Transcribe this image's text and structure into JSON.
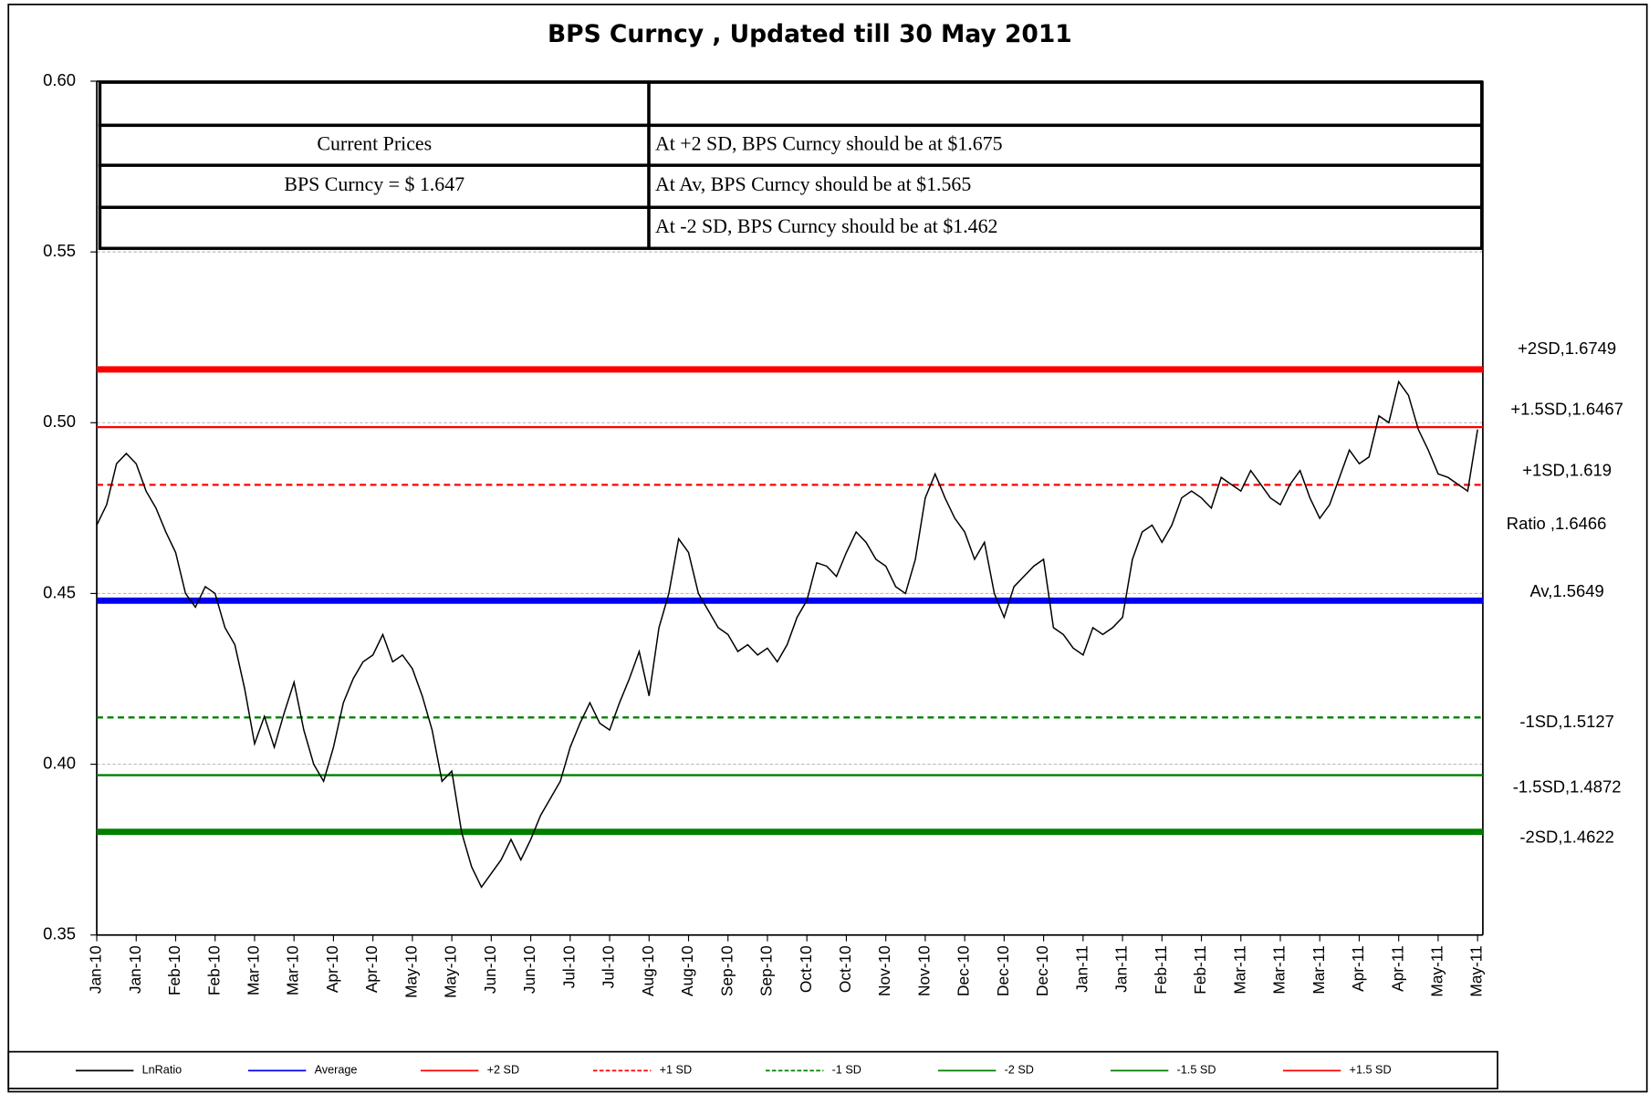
{
  "chart_data": {
    "type": "line",
    "title": "BPS Curncy , Updated till 30 May 2011",
    "categories": [
      "Jan-10",
      null,
      null,
      null,
      "Jan-10",
      null,
      null,
      null,
      "Feb-10",
      null,
      null,
      null,
      "Feb-10",
      null,
      null,
      null,
      "Mar-10",
      null,
      null,
      null,
      "Mar-10",
      null,
      null,
      null,
      "Apr-10",
      null,
      null,
      null,
      "Apr-10",
      null,
      null,
      null,
      "May-10",
      null,
      null,
      null,
      "May-10",
      null,
      null,
      null,
      "Jun-10",
      null,
      null,
      null,
      "Jun-10",
      null,
      null,
      null,
      "Jul-10",
      null,
      null,
      null,
      "Jul-10",
      null,
      null,
      null,
      "Aug-10",
      null,
      null,
      null,
      "Aug-10",
      null,
      null,
      null,
      "Sep-10",
      null,
      null,
      null,
      "Sep-10",
      null,
      null,
      null,
      "Oct-10",
      null,
      null,
      null,
      "Oct-10",
      null,
      null,
      null,
      "Nov-10",
      null,
      null,
      null,
      "Nov-10",
      null,
      null,
      null,
      "Dec-10",
      null,
      null,
      null,
      "Dec-10",
      null,
      null,
      null,
      "Dec-10",
      null,
      null,
      null,
      "Jan-11",
      null,
      null,
      null,
      "Jan-11",
      null,
      null,
      null,
      "Feb-11",
      null,
      null,
      null,
      "Feb-11",
      null,
      null,
      null,
      "Mar-11",
      null,
      null,
      null,
      "Mar-11",
      null,
      null,
      null,
      "Mar-11",
      null,
      null,
      null,
      "Apr-11",
      null,
      null,
      null,
      "Apr-11",
      null,
      null,
      null,
      "May-11",
      null,
      null,
      null,
      "May-11"
    ],
    "series": [
      {
        "name": "LnRatio",
        "color": "#000000",
        "annotation": "Ratio ,1.6466",
        "values": [
          0.47,
          0.476,
          0.488,
          0.491,
          0.488,
          0.48,
          0.475,
          0.468,
          0.462,
          0.45,
          0.446,
          0.452,
          0.45,
          0.44,
          0.435,
          0.422,
          0.406,
          0.414,
          0.405,
          0.415,
          0.424,
          0.41,
          0.4,
          0.395,
          0.405,
          0.418,
          0.425,
          0.43,
          0.432,
          0.438,
          0.43,
          0.432,
          0.428,
          0.42,
          0.41,
          0.395,
          0.398,
          0.38,
          0.37,
          0.364,
          0.368,
          0.372,
          0.378,
          0.372,
          0.378,
          0.385,
          0.39,
          0.395,
          0.405,
          0.412,
          0.418,
          0.412,
          0.41,
          0.418,
          0.425,
          0.433,
          0.42,
          0.44,
          0.45,
          0.466,
          0.462,
          0.45,
          0.445,
          0.44,
          0.438,
          0.433,
          0.435,
          0.432,
          0.434,
          0.43,
          0.435,
          0.443,
          0.448,
          0.459,
          0.458,
          0.455,
          0.462,
          0.468,
          0.465,
          0.46,
          0.458,
          0.452,
          0.45,
          0.46,
          0.478,
          0.485,
          0.478,
          0.472,
          0.468,
          0.46,
          0.465,
          0.45,
          0.443,
          0.452,
          0.455,
          0.458,
          0.46,
          0.44,
          0.438,
          0.434,
          0.432,
          0.44,
          0.438,
          0.44,
          0.443,
          0.46,
          0.468,
          0.47,
          0.465,
          0.47,
          0.478,
          0.48,
          0.478,
          0.475,
          0.484,
          0.482,
          0.48,
          0.486,
          0.482,
          0.478,
          0.476,
          0.482,
          0.486,
          0.478,
          0.472,
          0.476,
          0.484,
          0.492,
          0.488,
          0.49,
          0.502,
          0.5,
          0.512,
          0.508,
          0.498,
          0.492,
          0.485,
          0.484,
          0.482,
          0.48,
          0.498
        ]
      }
    ],
    "reference_lines": [
      {
        "name": "Average",
        "color": "#0000ee",
        "value": 0.4479,
        "line_width": 6,
        "dashed": false,
        "annotation": "Av,1.5649"
      },
      {
        "name": "+2 SD",
        "color": "#ff0000",
        "value": 0.5156,
        "line_width": 6,
        "dashed": false,
        "annotation": "+2SD,1.6749"
      },
      {
        "name": "+1 SD",
        "color": "#ff0000",
        "value": 0.4818,
        "line_width": 2,
        "dashed": true,
        "annotation": "+1SD,1.619"
      },
      {
        "name": "-1 SD",
        "color": "#008000",
        "value": 0.4137,
        "line_width": 2,
        "dashed": true,
        "annotation": "-1SD,1.5127"
      },
      {
        "name": "-2 SD",
        "color": "#008000",
        "value": 0.3802,
        "line_width": 6,
        "dashed": false,
        "annotation": "-2SD,1.4622"
      },
      {
        "name": "-1.5 SD",
        "color": "#008000",
        "value": 0.3968,
        "line_width": 2,
        "dashed": false,
        "annotation": "-1.5SD,1.4872"
      },
      {
        "name": "+1.5 SD",
        "color": "#ff0000",
        "value": 0.4987,
        "line_width": 2,
        "dashed": false,
        "annotation": "+1.5SD,1.6467"
      }
    ],
    "ylim": [
      0.35,
      0.6
    ],
    "yticks": [
      0.35,
      {
        "value": 0.4,
        "label": "0.40"
      },
      0.45,
      {
        "value": 0.5,
        "label": "0.50"
      },
      0.55,
      {
        "value": 0.6,
        "label": "0.60"
      }
    ],
    "grid": true,
    "table": {
      "rows": [
        [
          null,
          null
        ],
        [
          "Current Prices",
          "At +2 SD, BPS Curncy should be at $1.675"
        ],
        [
          "BPS Curncy =  $ 1.647",
          "At Av, BPS Curncy should be at $1.565"
        ],
        [
          null,
          "At -2 SD, BPS Curncy should be at $1.462"
        ]
      ]
    }
  }
}
